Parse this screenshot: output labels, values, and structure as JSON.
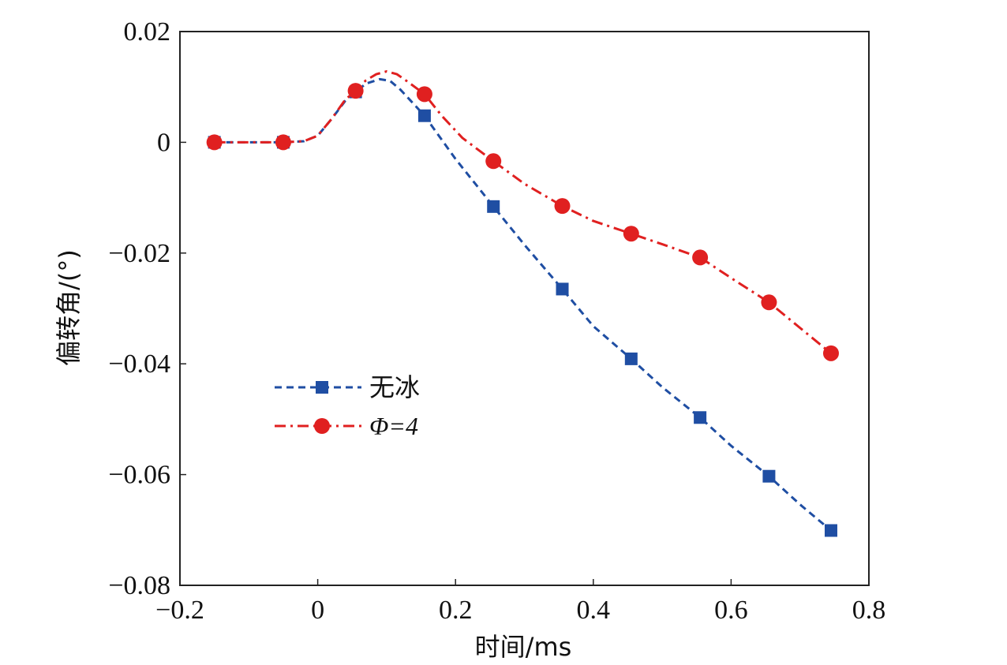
{
  "chart_data": {
    "type": "line",
    "xlabel": "时间/ms",
    "ylabel": "偏转角/(°)",
    "xlim": [
      -0.2,
      0.8
    ],
    "ylim": [
      -0.08,
      0.02
    ],
    "xticks": [
      -0.2,
      0,
      0.2,
      0.4,
      0.6,
      0.8
    ],
    "xtick_labels": [
      "−0.2",
      "0",
      "0.2",
      "0.4",
      "0.6",
      "0.8"
    ],
    "yticks": [
      0.02,
      0,
      -0.02,
      -0.04,
      -0.06,
      -0.08
    ],
    "ytick_labels": [
      "0.02",
      "0",
      "−0.02",
      "−0.04",
      "−0.06",
      "−0.08"
    ],
    "grid": false,
    "legend_position": "center-left",
    "series": [
      {
        "name": "无冰",
        "color": "#1f4ea3",
        "line_style": "dashed",
        "marker": "square",
        "x": [
          -0.15,
          -0.05,
          0.055,
          0.155,
          0.255,
          0.355,
          0.455,
          0.555,
          0.655,
          0.745
        ],
        "y": [
          0.0,
          0.0,
          0.0091,
          0.0048,
          -0.0116,
          -0.0265,
          -0.0391,
          -0.0497,
          -0.0603,
          -0.0701
        ],
        "curve_x": [
          -0.15,
          -0.1,
          -0.05,
          -0.02,
          0.0,
          0.02,
          0.04,
          0.055,
          0.07,
          0.09,
          0.105,
          0.12,
          0.135,
          0.155,
          0.2,
          0.255,
          0.3,
          0.355,
          0.4,
          0.455,
          0.5,
          0.555,
          0.6,
          0.655,
          0.7,
          0.745
        ],
        "curve_y": [
          0.0,
          0.0,
          0.0,
          0.0002,
          0.0012,
          0.0042,
          0.0075,
          0.0091,
          0.0106,
          0.0114,
          0.0111,
          0.0095,
          0.0075,
          0.0048,
          -0.003,
          -0.0116,
          -0.0185,
          -0.0265,
          -0.0332,
          -0.0391,
          -0.0442,
          -0.0497,
          -0.0548,
          -0.0603,
          -0.0654,
          -0.0701
        ]
      },
      {
        "name": "Φ=4",
        "color": "#e02020",
        "line_style": "dash-dot",
        "marker": "circle",
        "x": [
          -0.15,
          -0.05,
          0.055,
          0.155,
          0.255,
          0.355,
          0.455,
          0.555,
          0.655,
          0.745
        ],
        "y": [
          0.0,
          0.0,
          0.0093,
          0.0087,
          -0.0034,
          -0.0115,
          -0.0165,
          -0.0208,
          -0.0289,
          -0.0381
        ],
        "curve_x": [
          -0.15,
          -0.1,
          -0.05,
          -0.02,
          0.0,
          0.02,
          0.04,
          0.055,
          0.07,
          0.085,
          0.1,
          0.115,
          0.13,
          0.155,
          0.18,
          0.21,
          0.255,
          0.3,
          0.355,
          0.4,
          0.455,
          0.5,
          0.555,
          0.6,
          0.655,
          0.7,
          0.745
        ],
        "curve_y": [
          0.0,
          0.0,
          0.0,
          0.0002,
          0.0012,
          0.0042,
          0.0077,
          0.0093,
          0.0112,
          0.0123,
          0.0128,
          0.0123,
          0.011,
          0.0087,
          0.0048,
          0.0008,
          -0.0034,
          -0.0075,
          -0.0115,
          -0.0142,
          -0.0165,
          -0.0184,
          -0.0208,
          -0.0245,
          -0.0289,
          -0.0335,
          -0.0381
        ]
      }
    ]
  }
}
